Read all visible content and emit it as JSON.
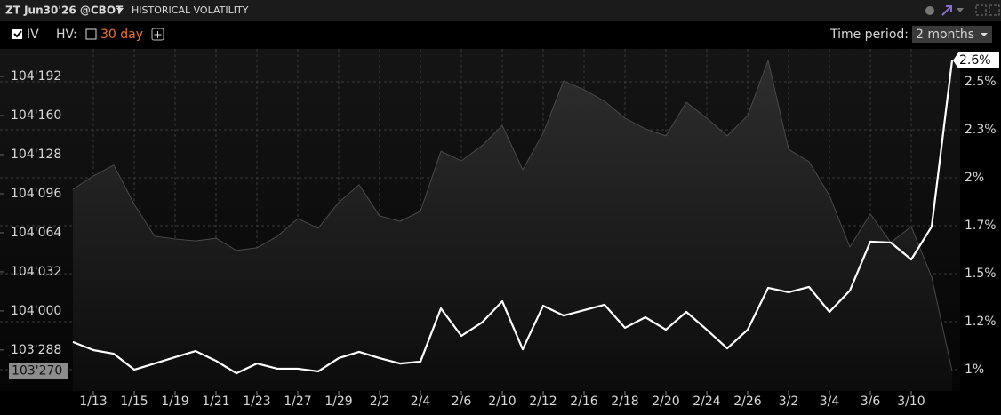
{
  "ui": {
    "contract": "ZT Jun30'26 @CBOT",
    "panel": "HISTORICAL VOLATILITY",
    "hv_label": "HV:",
    "hv_period": "30 day",
    "period_label": "Time period:",
    "period_value": "2 months"
  },
  "chart_data": {
    "type": "line",
    "categories": [
      null,
      "1/13",
      null,
      "1/15",
      null,
      "1/19",
      null,
      "1/21",
      null,
      "1/23",
      null,
      "1/27",
      null,
      "1/29",
      null,
      "2/2",
      null,
      "2/4",
      null,
      "2/6",
      null,
      "2/10",
      null,
      "2/12",
      null,
      "2/16",
      null,
      "2/18",
      null,
      "2/20",
      null,
      "2/24",
      null,
      "2/26",
      null,
      "3/2",
      null,
      "3/4",
      null,
      "3/6",
      null,
      "3/10",
      null,
      null
    ],
    "series": [
      {
        "axis": "y",
        "fill": true,
        "color": "#4a4a4a",
        "values": [
          104.316,
          104.351,
          104.379,
          104.277,
          104.194,
          104.187,
          104.182,
          104.189,
          104.157,
          104.164,
          104.194,
          104.24,
          104.215,
          104.282,
          104.328,
          104.247,
          104.233,
          104.259,
          104.415,
          104.39,
          104.429,
          104.482,
          104.367,
          104.462,
          104.598,
          104.575,
          104.545,
          104.501,
          104.473,
          104.455,
          104.542,
          104.501,
          104.455,
          104.508,
          104.651,
          104.42,
          104.388,
          104.3,
          104.166,
          104.252,
          104.178,
          104.219,
          104.088,
          103.844
        ],
        "value_labels": [
          null,
          null,
          null,
          null,
          null,
          null,
          null,
          null,
          null,
          null,
          null,
          null,
          null,
          null,
          null,
          null,
          null,
          null,
          null,
          null,
          null,
          null,
          null,
          null,
          null,
          null,
          null,
          null,
          null,
          null,
          null,
          null,
          null,
          null,
          null,
          null,
          null,
          null,
          null,
          null,
          null,
          null,
          null,
          "103'270"
        ]
      },
      {
        "name": "IV",
        "axis": "y2",
        "fill": false,
        "color": "#ffffff",
        "values": [
          1.144,
          1.102,
          1.083,
          1.0,
          1.032,
          1.065,
          1.097,
          1.046,
          0.981,
          1.032,
          1.005,
          1.005,
          0.991,
          1.06,
          1.093,
          1.06,
          1.032,
          1.042,
          1.319,
          1.176,
          1.245,
          1.356,
          1.106,
          1.333,
          1.282,
          1.31,
          1.338,
          1.218,
          1.273,
          1.208,
          1.301,
          1.208,
          1.111,
          1.208,
          1.426,
          1.403,
          1.431,
          1.301,
          1.412,
          1.667,
          1.662,
          1.574,
          1.745,
          2.611
        ],
        "value_labels": [
          null,
          null,
          null,
          null,
          null,
          null,
          null,
          null,
          null,
          null,
          null,
          null,
          null,
          null,
          null,
          null,
          null,
          null,
          null,
          null,
          null,
          null,
          null,
          null,
          null,
          null,
          null,
          null,
          null,
          null,
          null,
          null,
          null,
          null,
          null,
          null,
          null,
          null,
          null,
          null,
          null,
          null,
          null,
          "2.6%"
        ]
      }
    ],
    "ylim": [
      103.792,
      104.681
    ],
    "yticks": [
      {
        "value": 103.8984375,
        "label": "103'288"
      },
      {
        "value": 104.0,
        "label": "104'000"
      },
      {
        "value": 104.1015625,
        "label": "104'032"
      },
      {
        "value": 104.203125,
        "label": "104'064"
      },
      {
        "value": 104.3046875,
        "label": "104'096"
      },
      {
        "value": 104.40625,
        "label": "104'128"
      },
      {
        "value": 104.5078125,
        "label": "104'160"
      },
      {
        "value": 104.609375,
        "label": "104'192"
      }
    ],
    "y2lim": [
      0.889,
      2.671
    ],
    "y2ticks": [
      {
        "value": 1.0,
        "label": "1%"
      },
      {
        "value": 1.25,
        "label": "1.2%"
      },
      {
        "value": 1.5,
        "label": "1.5%"
      },
      {
        "value": 1.75,
        "label": "1.7%"
      },
      {
        "value": 2.0,
        "label": "2%"
      },
      {
        "value": 2.25,
        "label": "2.3%"
      },
      {
        "value": 2.5,
        "label": "2.5%"
      }
    ],
    "grid": true
  }
}
